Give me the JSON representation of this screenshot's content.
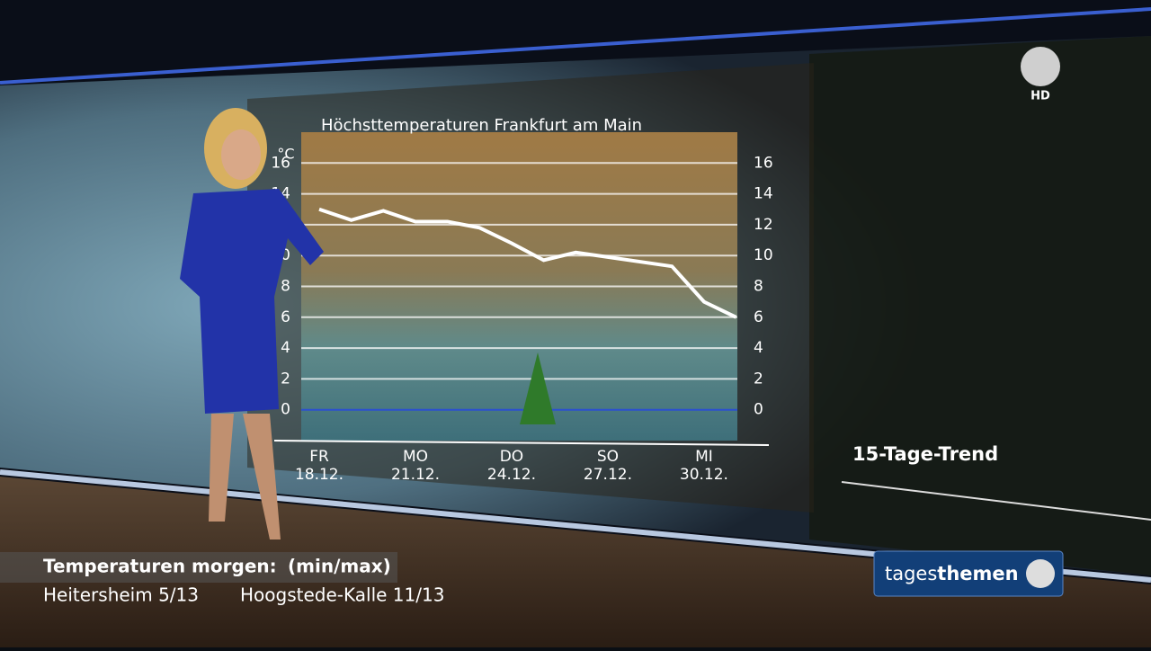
{
  "chart_data": {
    "type": "line",
    "title": "Höchsttemperaturen Frankfurt am Main",
    "y_label": "°C",
    "categories": [
      "FR 18.12.",
      null,
      null,
      "MO 21.12.",
      null,
      null,
      "DO 24.12.",
      null,
      null,
      "SO 27.12.",
      null,
      null,
      "MI 30.12.",
      null
    ],
    "series": [
      {
        "name": "Höchsttemperatur",
        "color": "#ffffff",
        "values": [
          13,
          12.3,
          12.9,
          12.2,
          12.2,
          11.8,
          10.8,
          9.7,
          10.2,
          9.9,
          9.6,
          9.3,
          7,
          6
        ]
      }
    ],
    "ylim": [
      -2,
      18
    ],
    "yticks": [
      0,
      2,
      4,
      6,
      8,
      10,
      12,
      14,
      16
    ],
    "grid": true
  },
  "side_panel": {
    "title": "15-Tage-Trend"
  },
  "ticker": {
    "heading": "Temperaturen morgen:",
    "note": "(min/max)",
    "items": [
      "Heitersheim 5/13",
      "Hoogstede-Kalle 11/13"
    ]
  },
  "branding": {
    "channel_badge": "HD",
    "show_prefix": "tages",
    "show_suffix": "themen"
  }
}
